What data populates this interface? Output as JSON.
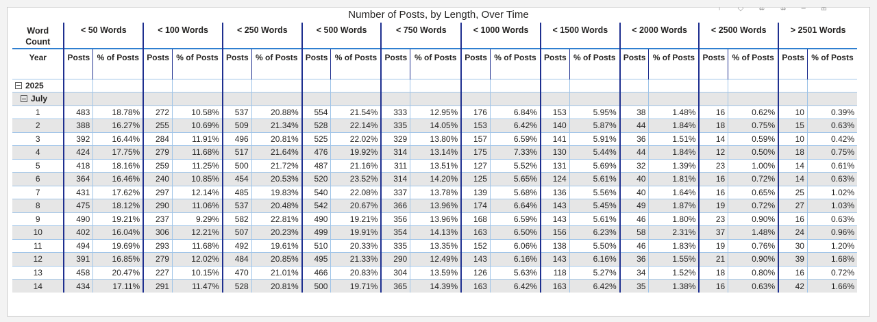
{
  "title": "Number of Posts, by Length, Over Time",
  "row_header": {
    "group_label": "Word Count",
    "sub_label": "Year"
  },
  "groups": [
    "< 50 Words",
    "< 100 Words",
    "< 250 Words",
    "< 500 Words",
    "< 750 Words",
    "< 1000 Words",
    "< 1500 Words",
    "< 2000 Words",
    "< 2500 Words",
    "> 2501 Words"
  ],
  "sub_labels": {
    "posts": "Posts",
    "pct": "% of Posts"
  },
  "year": "2025",
  "month": "July",
  "rows": [
    {
      "day": "1",
      "cells": [
        "483",
        "18.78%",
        "272",
        "10.58%",
        "537",
        "20.88%",
        "554",
        "21.54%",
        "333",
        "12.95%",
        "176",
        "6.84%",
        "153",
        "5.95%",
        "38",
        "1.48%",
        "16",
        "0.62%",
        "10",
        "0.39%"
      ]
    },
    {
      "day": "2",
      "cells": [
        "388",
        "16.27%",
        "255",
        "10.69%",
        "509",
        "21.34%",
        "528",
        "22.14%",
        "335",
        "14.05%",
        "153",
        "6.42%",
        "140",
        "5.87%",
        "44",
        "1.84%",
        "18",
        "0.75%",
        "15",
        "0.63%"
      ]
    },
    {
      "day": "3",
      "cells": [
        "392",
        "16.44%",
        "284",
        "11.91%",
        "496",
        "20.81%",
        "525",
        "22.02%",
        "329",
        "13.80%",
        "157",
        "6.59%",
        "141",
        "5.91%",
        "36",
        "1.51%",
        "14",
        "0.59%",
        "10",
        "0.42%"
      ]
    },
    {
      "day": "4",
      "cells": [
        "424",
        "17.75%",
        "279",
        "11.68%",
        "517",
        "21.64%",
        "476",
        "19.92%",
        "314",
        "13.14%",
        "175",
        "7.33%",
        "130",
        "5.44%",
        "44",
        "1.84%",
        "12",
        "0.50%",
        "18",
        "0.75%"
      ]
    },
    {
      "day": "5",
      "cells": [
        "418",
        "18.16%",
        "259",
        "11.25%",
        "500",
        "21.72%",
        "487",
        "21.16%",
        "311",
        "13.51%",
        "127",
        "5.52%",
        "131",
        "5.69%",
        "32",
        "1.39%",
        "23",
        "1.00%",
        "14",
        "0.61%"
      ]
    },
    {
      "day": "6",
      "cells": [
        "364",
        "16.46%",
        "240",
        "10.85%",
        "454",
        "20.53%",
        "520",
        "23.52%",
        "314",
        "14.20%",
        "125",
        "5.65%",
        "124",
        "5.61%",
        "40",
        "1.81%",
        "16",
        "0.72%",
        "14",
        "0.63%"
      ]
    },
    {
      "day": "7",
      "cells": [
        "431",
        "17.62%",
        "297",
        "12.14%",
        "485",
        "19.83%",
        "540",
        "22.08%",
        "337",
        "13.78%",
        "139",
        "5.68%",
        "136",
        "5.56%",
        "40",
        "1.64%",
        "16",
        "0.65%",
        "25",
        "1.02%"
      ]
    },
    {
      "day": "8",
      "cells": [
        "475",
        "18.12%",
        "290",
        "11.06%",
        "537",
        "20.48%",
        "542",
        "20.67%",
        "366",
        "13.96%",
        "174",
        "6.64%",
        "143",
        "5.45%",
        "49",
        "1.87%",
        "19",
        "0.72%",
        "27",
        "1.03%"
      ]
    },
    {
      "day": "9",
      "cells": [
        "490",
        "19.21%",
        "237",
        "9.29%",
        "582",
        "22.81%",
        "490",
        "19.21%",
        "356",
        "13.96%",
        "168",
        "6.59%",
        "143",
        "5.61%",
        "46",
        "1.80%",
        "23",
        "0.90%",
        "16",
        "0.63%"
      ]
    },
    {
      "day": "10",
      "cells": [
        "402",
        "16.04%",
        "306",
        "12.21%",
        "507",
        "20.23%",
        "499",
        "19.91%",
        "354",
        "14.13%",
        "163",
        "6.50%",
        "156",
        "6.23%",
        "58",
        "2.31%",
        "37",
        "1.48%",
        "24",
        "0.96%"
      ]
    },
    {
      "day": "11",
      "cells": [
        "494",
        "19.69%",
        "293",
        "11.68%",
        "492",
        "19.61%",
        "510",
        "20.33%",
        "335",
        "13.35%",
        "152",
        "6.06%",
        "138",
        "5.50%",
        "46",
        "1.83%",
        "19",
        "0.76%",
        "30",
        "1.20%"
      ]
    },
    {
      "day": "12",
      "cells": [
        "391",
        "16.85%",
        "279",
        "12.02%",
        "484",
        "20.85%",
        "495",
        "21.33%",
        "290",
        "12.49%",
        "143",
        "6.16%",
        "143",
        "6.16%",
        "36",
        "1.55%",
        "21",
        "0.90%",
        "39",
        "1.68%"
      ]
    },
    {
      "day": "13",
      "cells": [
        "458",
        "20.47%",
        "227",
        "10.15%",
        "470",
        "21.01%",
        "466",
        "20.83%",
        "304",
        "13.59%",
        "126",
        "5.63%",
        "118",
        "5.27%",
        "34",
        "1.52%",
        "18",
        "0.80%",
        "16",
        "0.72%"
      ]
    },
    {
      "day": "14",
      "cells": [
        "434",
        "17.11%",
        "291",
        "11.47%",
        "528",
        "20.81%",
        "500",
        "19.71%",
        "365",
        "14.39%",
        "163",
        "6.42%",
        "163",
        "6.42%",
        "35",
        "1.38%",
        "16",
        "0.63%",
        "42",
        "1.66%"
      ]
    }
  ]
}
